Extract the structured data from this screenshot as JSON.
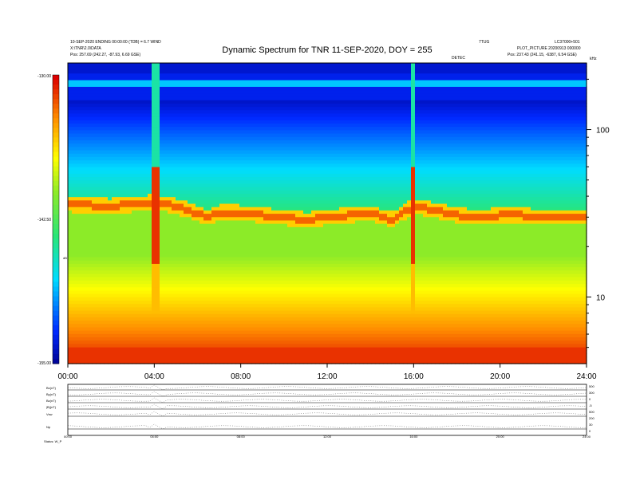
{
  "title": "Dynamic Spectrum for TNR 11-SEP-2020, DOY = 255",
  "header_left": {
    "line1": "10-SEP-2020 ENDING 00:00:00 (TDB) = 6.7 WIND",
    "line2": "X:\\TNR\\2.0\\DATA",
    "line3": "Pos:  257.69 (242.27, -87.93, 6.69 GSE)"
  },
  "header_right": {
    "line1a": "7TUG",
    "line1b": "LC37000+501",
    "line2": "PLOT_PICTURE 20200913 000000",
    "line3": "Pos:  237.43 (241.15, -6387, 6.54 GSE)",
    "ticks_tag": "DETEC"
  },
  "colorbar": {
    "label": "dB",
    "min_label": "-155.00",
    "mid_label": "-142.50",
    "max_label": "-130.00"
  },
  "right_axis_unit": "kHz",
  "lower_panel_labels": [
    "Bx(nT)",
    "By(nT)",
    "Bz(nT)",
    "|B|(nT)",
    "Vsw",
    "Np"
  ],
  "lower_right_ticks": [
    "500",
    "300",
    "0",
    "-5",
    "500",
    "200",
    "30",
    "0"
  ],
  "status": "Status: W_P",
  "chart_data": {
    "type": "heatmap",
    "x_unit": "UT hours",
    "xlim": [
      0,
      24
    ],
    "x_ticks": [
      "00:00",
      "04:00",
      "08:00",
      "12:00",
      "16:00",
      "20:00",
      "24:00"
    ],
    "y_axis": "frequency (kHz)",
    "y_scale": "log",
    "ylim": [
      4,
      250
    ],
    "y_ticks": [
      10,
      100
    ],
    "z_label": "dB",
    "zlim": [
      -155,
      -130
    ],
    "z_ticks": [
      -155,
      -142.5,
      -130
    ],
    "plasma_line_kHz": {
      "x": [
        0,
        2,
        4,
        5,
        6.5,
        7,
        8,
        9,
        10,
        11,
        12,
        13,
        14,
        15,
        16,
        17,
        18,
        19,
        20,
        21,
        22,
        24
      ],
      "y": [
        36,
        35,
        37,
        35,
        30,
        32,
        32,
        31,
        30,
        29,
        30,
        31,
        32,
        29,
        35,
        33,
        31,
        30,
        31,
        31,
        30,
        30
      ]
    },
    "bursts": [
      {
        "start_hr": 3.95,
        "end_hr": 4.25,
        "note": "broadband emission"
      },
      {
        "start_hr": 15.9,
        "end_hr": 16.0,
        "note": "low-frequency enhancement"
      }
    ]
  }
}
